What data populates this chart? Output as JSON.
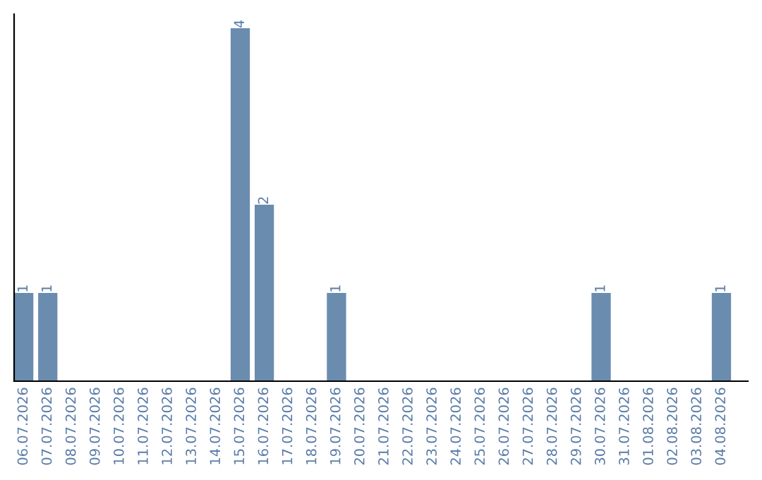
{
  "chart_data": {
    "type": "bar",
    "categories": [
      "06.07.2026",
      "07.07.2026",
      "08.07.2026",
      "09.07.2026",
      "10.07.2026",
      "11.07.2026",
      "12.07.2026",
      "13.07.2026",
      "14.07.2026",
      "15.07.2026",
      "16.07.2026",
      "17.07.2026",
      "18.07.2026",
      "19.07.2026",
      "20.07.2026",
      "21.07.2026",
      "22.07.2026",
      "23.07.2026",
      "24.07.2026",
      "25.07.2026",
      "26.07.2026",
      "27.07.2026",
      "28.07.2026",
      "29.07.2026",
      "30.07.2026",
      "31.07.2026",
      "01.08.2026",
      "02.08.2026",
      "03.08.2026",
      "04.08.2026"
    ],
    "values": [
      1,
      1,
      0,
      0,
      0,
      0,
      0,
      0,
      0,
      4,
      2,
      0,
      0,
      1,
      0,
      0,
      0,
      0,
      0,
      0,
      0,
      0,
      0,
      0,
      1,
      0,
      0,
      0,
      0,
      1
    ],
    "value_labels": [
      "1",
      "1",
      null,
      null,
      null,
      null,
      null,
      null,
      null,
      "4",
      "2",
      null,
      null,
      "1",
      null,
      null,
      null,
      null,
      null,
      null,
      null,
      null,
      null,
      null,
      "1",
      null,
      null,
      null,
      null,
      "1"
    ],
    "color": "#6a8caf",
    "tick_labels": "x",
    "grid": false,
    "legend": false
  }
}
